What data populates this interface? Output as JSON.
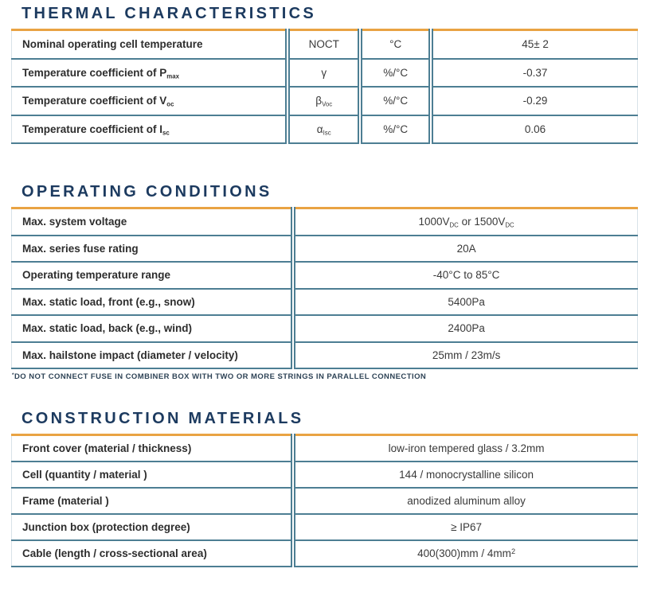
{
  "colors": {
    "title_navy": "#1c3a5f",
    "accent_orange": "#e9a343",
    "rule_teal": "#4d7e93",
    "label_text": "#2d2d2d",
    "value_text": "#3a3a3a"
  },
  "sections": [
    {
      "id": "thermal-characteristics",
      "title": "THERMAL CHARACTERISTICS",
      "columns": [
        "parameter",
        "symbol",
        "unit",
        "value"
      ],
      "rows": [
        {
          "cells": [
            "Nominal operating cell temperature",
            "NOCT",
            "°C",
            "45± 2"
          ]
        },
        {
          "cells": [
            "Temperature coefficient of P~max~",
            "γ",
            "%/°C",
            "-0.37"
          ]
        },
        {
          "cells": [
            "Temperature coefficient of V~oc~",
            "β~Voc~",
            "%/°C",
            "-0.29"
          ]
        },
        {
          "cells": [
            "Temperature coefficient of I~sc~",
            "α~Isc~",
            "%/°C",
            "0.06"
          ]
        }
      ]
    },
    {
      "id": "operating-conditions",
      "title": "OPERATING CONDITIONS",
      "columns": [
        "parameter",
        "value"
      ],
      "rows": [
        {
          "cells": [
            "Max. system voltage",
            "1000V~DC~ or 1500V~DC~"
          ]
        },
        {
          "cells": [
            "Max. series fuse rating",
            "20A"
          ]
        },
        {
          "cells": [
            "Operating temperature range",
            "-40°C to 85°C"
          ]
        },
        {
          "cells": [
            "Max. static load, front (e.g., snow)",
            "5400Pa"
          ]
        },
        {
          "cells": [
            "Max. static load, back (e.g., wind)",
            "2400Pa"
          ]
        },
        {
          "cells": [
            "Max. hailstone impact (diameter / velocity)",
            "25mm / 23m/s"
          ]
        }
      ],
      "footnote": "^*^DO NOT CONNECT FUSE IN COMBINER BOX WITH TWO OR MORE STRINGS IN PARALLEL CONNECTION"
    },
    {
      "id": "construction-materials",
      "title": "CONSTRUCTION MATERIALS",
      "columns": [
        "parameter",
        "value"
      ],
      "rows": [
        {
          "cells": [
            "Front cover (material / thickness)",
            "low-iron tempered glass / 3.2mm"
          ]
        },
        {
          "cells": [
            "Cell (quantity / material )",
            "144 / monocrystalline silicon"
          ]
        },
        {
          "cells": [
            "Frame (material )",
            "anodized aluminum alloy"
          ]
        },
        {
          "cells": [
            "Junction box (protection degree)",
            "≥ IP67"
          ]
        },
        {
          "cells": [
            "Cable (length / cross-sectional area)",
            "400(300)mm / 4mm^2^"
          ]
        }
      ]
    }
  ]
}
